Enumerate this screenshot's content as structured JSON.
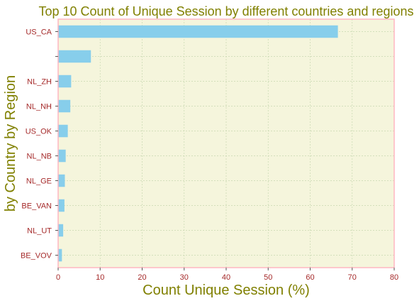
{
  "chart_data": {
    "type": "bar",
    "orientation": "horizontal",
    "title": "Top 10 Count of Unique Session by different countries and regions",
    "xlabel": "Count Unique Session (%)",
    "ylabel": "by Country by Region",
    "categories": [
      "US_CA",
      "",
      "NL_ZH",
      "NL_NH",
      "US_OK",
      "NL_NB",
      "NL_GE",
      "BE_VAN",
      "NL_UT",
      "BE_VOV"
    ],
    "values": [
      66.6,
      7.8,
      3.1,
      2.9,
      2.3,
      1.8,
      1.6,
      1.5,
      1.2,
      0.9
    ],
    "xlim": [
      0,
      80
    ],
    "xticks": [
      0,
      10,
      20,
      30,
      40,
      50,
      60,
      70,
      80
    ],
    "grid": true,
    "colors": {
      "bar": "#87ceeb",
      "plot_background": "#f5f5dc",
      "title": "#808000",
      "axis_label": "#808000",
      "tick_label": "#a52a2a",
      "spine": "#ffb6c1",
      "grid": "#c8d8b0"
    }
  }
}
